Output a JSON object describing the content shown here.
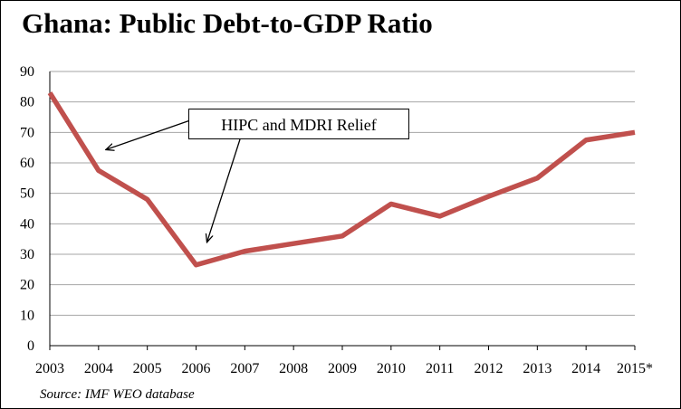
{
  "title": "Ghana:  Public Debt-to-GDP Ratio",
  "source": "Source: IMF WEO database",
  "annotation": "HIPC and MDRI Relief",
  "colors": {
    "series": "#C0504D",
    "grid": "#A6A6A6",
    "axis": "#000000"
  },
  "chart_data": {
    "type": "line",
    "title": "Ghana:  Public Debt-to-GDP Ratio",
    "xlabel": "",
    "ylabel": "",
    "categories": [
      "2003",
      "2004",
      "2005",
      "2006",
      "2007",
      "2008",
      "2009",
      "2010",
      "2011",
      "2012",
      "2013",
      "2014",
      "2015*"
    ],
    "yticks": [
      "0",
      "10",
      "20",
      "30",
      "40",
      "50",
      "60",
      "70",
      "80",
      "90"
    ],
    "ylim": [
      0,
      90
    ],
    "grid": true,
    "legend": "none",
    "series": [
      {
        "values": [
          83,
          57.5,
          48,
          26.5,
          31,
          33.5,
          36,
          46.5,
          42.5,
          49,
          55,
          67.5,
          70
        ]
      }
    ],
    "annotations": [
      {
        "text": "HIPC and MDRI Relief",
        "points_to": [
          "2004",
          "2006"
        ]
      }
    ]
  }
}
